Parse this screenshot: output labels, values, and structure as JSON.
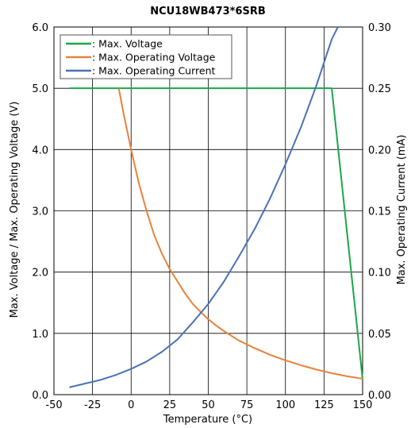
{
  "chart_data": {
    "type": "line",
    "title": "NCU18WB473*6SRB",
    "xlabel": "Temperature (°C)",
    "ylabel_left": "Max. Voltage / Max. Operating Voltage (V)",
    "ylabel_right": "Max. Operating Current (mA)",
    "xlim": [
      -50,
      150
    ],
    "ylim_left": [
      0,
      6
    ],
    "ylim_right": [
      0,
      0.3
    ],
    "x_ticks": [
      "-50",
      "-25",
      "0",
      "25",
      "50",
      "75",
      "100",
      "125",
      "150"
    ],
    "y_left_ticks": [
      "0.0",
      "1.0",
      "2.0",
      "3.0",
      "4.0",
      "5.0",
      "6.0"
    ],
    "y_right_ticks": [
      "0.00",
      "0.05",
      "0.10",
      "0.15",
      "0.20",
      "0.25",
      "0.30"
    ],
    "grid": true,
    "legend_position": "top-left",
    "series": [
      {
        "name": ": Max. Voltage",
        "axis": "left",
        "color": "#1aa74b",
        "x": [
          -40,
          130,
          150
        ],
        "y": [
          5.0,
          5.0,
          0.25
        ]
      },
      {
        "name": ": Max. Operating Voltage",
        "axis": "left",
        "color": "#e8823a",
        "x": [
          -8,
          -5,
          0,
          5,
          10,
          15,
          20,
          25,
          30,
          35,
          40,
          45,
          50,
          55,
          60,
          70,
          80,
          90,
          100,
          110,
          120,
          130,
          140,
          150
        ],
        "y": [
          5.0,
          4.6,
          4.0,
          3.45,
          3.0,
          2.6,
          2.3,
          2.05,
          1.85,
          1.65,
          1.48,
          1.35,
          1.23,
          1.13,
          1.04,
          0.88,
          0.76,
          0.65,
          0.56,
          0.48,
          0.41,
          0.35,
          0.3,
          0.26
        ]
      },
      {
        "name": ": Max. Operating Current",
        "axis": "right",
        "color": "#4a72b5",
        "x": [
          -40,
          -30,
          -20,
          -10,
          0,
          10,
          20,
          30,
          40,
          50,
          60,
          70,
          80,
          90,
          100,
          110,
          120,
          130,
          134
        ],
        "y": [
          0.006,
          0.009,
          0.012,
          0.016,
          0.021,
          0.027,
          0.035,
          0.045,
          0.059,
          0.074,
          0.092,
          0.113,
          0.135,
          0.16,
          0.188,
          0.218,
          0.252,
          0.29,
          0.3
        ]
      }
    ]
  }
}
